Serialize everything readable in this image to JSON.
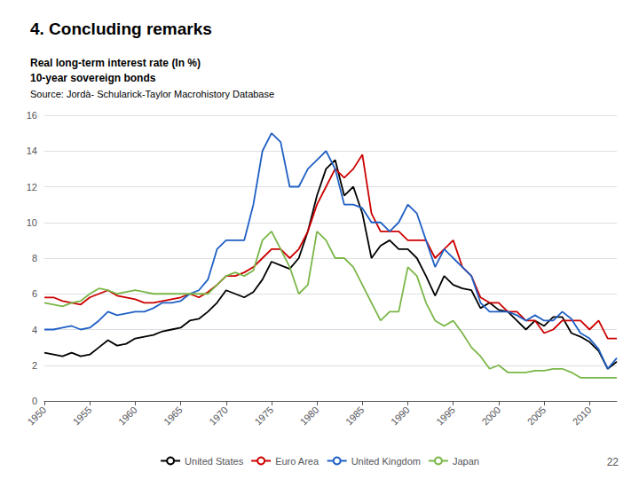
{
  "chart_data": {
    "type": "line",
    "title": "4. Concluding remarks",
    "subtitle": [
      "Real long-term interest rate (In %)",
      "10-year sovereign bonds"
    ],
    "annotations": [
      "Source: Jordà- Schularick-Taylor Macrohistory Database",
      "22"
    ],
    "x": [
      1950,
      1951,
      1952,
      1953,
      1954,
      1955,
      1956,
      1957,
      1958,
      1959,
      1960,
      1961,
      1962,
      1963,
      1964,
      1965,
      1966,
      1967,
      1968,
      1969,
      1970,
      1971,
      1972,
      1973,
      1974,
      1975,
      1976,
      1977,
      1978,
      1979,
      1980,
      1981,
      1982,
      1983,
      1984,
      1985,
      1986,
      1987,
      1988,
      1989,
      1990,
      1991,
      1992,
      1993,
      1994,
      1995,
      1996,
      1997,
      1998,
      1999,
      2000,
      2001,
      2002,
      2003,
      2004,
      2005,
      2006,
      2007,
      2008,
      2009,
      2010,
      2011,
      2012,
      2013
    ],
    "series": [
      {
        "name": "United States",
        "color": "#000000",
        "values": [
          2.7,
          2.6,
          2.5,
          2.7,
          2.5,
          2.6,
          3.0,
          3.4,
          3.1,
          3.2,
          3.5,
          3.6,
          3.7,
          3.9,
          4.0,
          4.1,
          4.5,
          4.6,
          5.0,
          5.5,
          6.2,
          6.0,
          5.8,
          6.1,
          6.8,
          7.8,
          7.6,
          7.4,
          8.0,
          9.5,
          11.5,
          13.0,
          13.5,
          11.5,
          12.0,
          10.5,
          8.0,
          8.7,
          9.0,
          8.5,
          8.5,
          8.0,
          7.0,
          5.9,
          7.0,
          6.5,
          6.3,
          6.2,
          5.2,
          5.5,
          5.1,
          5.0,
          4.5,
          4.0,
          4.5,
          4.2,
          4.7,
          4.7,
          3.8,
          3.6,
          3.3,
          2.8,
          1.8,
          2.2
        ]
      },
      {
        "name": "Euro Area",
        "color": "#cc0000",
        "values": [
          5.8,
          5.8,
          5.6,
          5.5,
          5.4,
          5.8,
          6.0,
          6.2,
          5.9,
          5.8,
          5.7,
          5.5,
          5.5,
          5.6,
          5.7,
          5.8,
          6.0,
          5.8,
          6.1,
          6.5,
          7.0,
          7.0,
          7.2,
          7.5,
          8.0,
          8.5,
          8.5,
          8.0,
          8.5,
          9.5,
          11.0,
          12.0,
          13.0,
          12.5,
          13.0,
          13.8,
          10.5,
          9.5,
          9.5,
          9.5,
          9.0,
          9.0,
          9.0,
          8.0,
          8.5,
          9.0,
          7.5,
          7.0,
          5.8,
          5.5,
          5.5,
          5.0,
          5.0,
          4.5,
          4.5,
          3.8,
          4.0,
          4.5,
          4.5,
          4.5,
          4.0,
          4.5,
          3.5,
          3.5
        ]
      },
      {
        "name": "United Kingdom",
        "color": "#1f5fc4",
        "values": [
          4.0,
          4.0,
          4.1,
          4.2,
          4.0,
          4.1,
          4.5,
          5.0,
          4.8,
          4.9,
          5.0,
          5.0,
          5.2,
          5.5,
          5.5,
          5.6,
          6.0,
          6.2,
          6.8,
          8.5,
          9.0,
          9.0,
          9.0,
          11.0,
          14.0,
          15.0,
          14.5,
          12.0,
          12.0,
          13.0,
          13.5,
          14.0,
          13.0,
          11.0,
          11.0,
          10.8,
          10.0,
          10.0,
          9.5,
          10.0,
          11.0,
          10.5,
          9.0,
          7.5,
          8.5,
          8.0,
          7.5,
          7.0,
          5.5,
          5.0,
          5.0,
          5.0,
          4.8,
          4.5,
          4.8,
          4.5,
          4.5,
          5.0,
          4.6,
          3.8,
          3.5,
          2.9,
          1.8,
          2.4
        ]
      },
      {
        "name": "Japan",
        "color": "#7ab648",
        "values": [
          5.5,
          5.4,
          5.3,
          5.5,
          5.6,
          6.0,
          6.3,
          6.2,
          6.0,
          6.1,
          6.2,
          6.1,
          6.0,
          6.0,
          6.0,
          6.0,
          6.0,
          6.0,
          6.0,
          6.5,
          7.0,
          7.2,
          7.0,
          7.3,
          9.0,
          9.5,
          8.5,
          7.5,
          6.0,
          6.5,
          9.5,
          9.0,
          8.0,
          8.0,
          7.5,
          6.5,
          5.5,
          4.5,
          5.0,
          5.0,
          7.5,
          7.0,
          5.5,
          4.5,
          4.2,
          4.5,
          3.8,
          3.0,
          2.5,
          1.8,
          2.0,
          1.6,
          1.6,
          1.6,
          1.7,
          1.7,
          1.8,
          1.8,
          1.6,
          1.3,
          1.3,
          1.3,
          1.3,
          1.3
        ]
      }
    ],
    "xlim": [
      1950,
      2013
    ],
    "xticks": [
      1950,
      1955,
      1960,
      1965,
      1970,
      1975,
      1980,
      1985,
      1990,
      1995,
      2000,
      2005,
      2010
    ],
    "ylim": [
      0,
      16
    ],
    "yticks": [
      0,
      2,
      4,
      6,
      8,
      10,
      12,
      14,
      16
    ],
    "grid": true,
    "legend": "bottom"
  }
}
